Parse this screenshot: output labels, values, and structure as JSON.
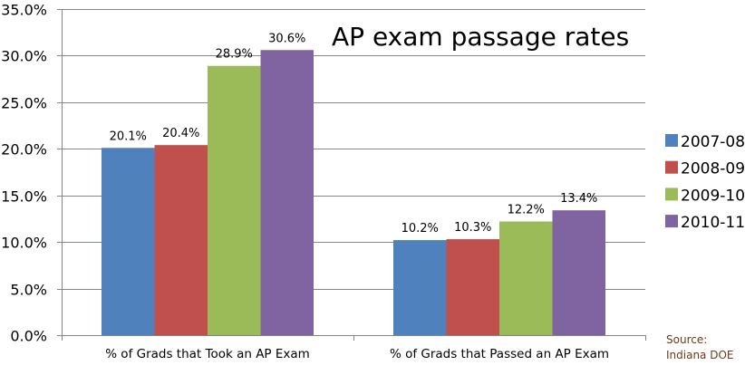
{
  "chart_data": {
    "type": "bar",
    "title": "AP exam passage rates",
    "categories": [
      "% of Grads that Took an AP Exam",
      "% of Grads that Passed an AP Exam"
    ],
    "series": [
      {
        "name": "2007-08",
        "values": [
          20.1,
          10.2
        ],
        "labels": [
          "20.1%",
          "10.2%"
        ],
        "color": "#4f81bd"
      },
      {
        "name": "2008-09",
        "values": [
          20.4,
          10.3
        ],
        "labels": [
          "20.4%",
          "10.3%"
        ],
        "color": "#c0504d"
      },
      {
        "name": "2009-10",
        "values": [
          28.9,
          12.2
        ],
        "labels": [
          "28.9%",
          "12.2%"
        ],
        "color": "#9bbb59"
      },
      {
        "name": "2010-11",
        "values": [
          30.6,
          13.4
        ],
        "labels": [
          "30.6%",
          "13.4%"
        ],
        "color": "#8064a2"
      }
    ],
    "ylim": [
      0,
      35
    ],
    "yticks": [
      "0.0%",
      "5.0%",
      "10.0%",
      "15.0%",
      "20.0%",
      "25.0%",
      "30.0%",
      "35.0%"
    ],
    "grid": true,
    "legend": "right",
    "source": [
      "Source:",
      "Indiana DOE"
    ]
  }
}
